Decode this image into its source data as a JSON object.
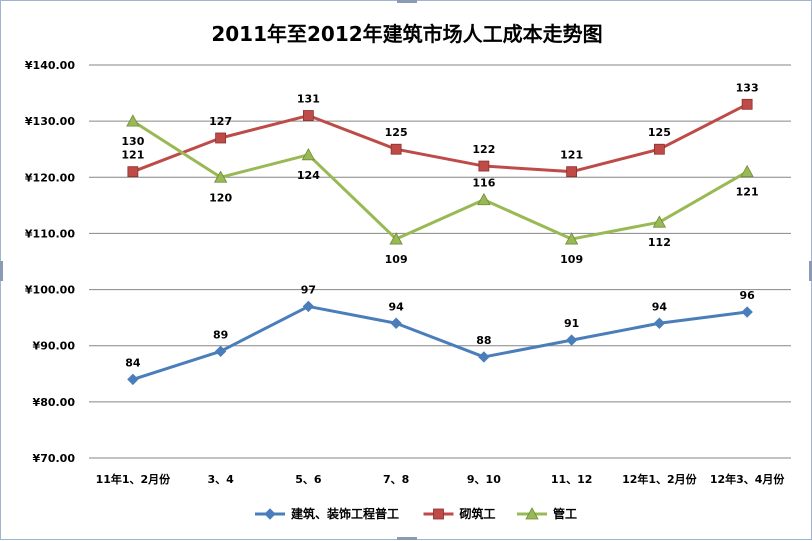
{
  "chart_data": {
    "type": "line",
    "title": "2011年至2012年建筑市场人工成本走势图",
    "categories": [
      "11年1、2月份",
      "3、4",
      "5、6",
      "7、8",
      "9、10",
      "11、12",
      "12年1、2月份",
      "12年3、4月份"
    ],
    "ylim": [
      70,
      140
    ],
    "yticks": [
      70,
      80,
      90,
      100,
      110,
      120,
      130,
      140
    ],
    "ytick_labels": [
      "¥70.00",
      "¥80.00",
      "¥90.00",
      "¥100.00",
      "¥110.00",
      "¥120.00",
      "¥130.00",
      "¥140.00"
    ],
    "grid": true,
    "legend_position": "bottom",
    "series": [
      {
        "name": "建筑、装饰工程普工",
        "values": [
          84,
          89,
          97,
          94,
          88,
          91,
          94,
          96
        ],
        "color": "#4a7ebb",
        "marker": "diamond",
        "label_pos": [
          "above",
          "above",
          "above",
          "above",
          "above",
          "above",
          "above",
          "above"
        ]
      },
      {
        "name": "砌筑工",
        "values": [
          121,
          127,
          131,
          125,
          122,
          121,
          125,
          133
        ],
        "color": "#be4b48",
        "marker": "square",
        "label_pos": [
          "above",
          "above",
          "above",
          "above",
          "above",
          "above",
          "above",
          "above"
        ]
      },
      {
        "name": "管工",
        "values": [
          130,
          120,
          124,
          109,
          116,
          109,
          112,
          121
        ],
        "color": "#98b954",
        "marker": "triangle",
        "label_pos": [
          "below",
          "below",
          "below",
          "below",
          "above",
          "below",
          "below",
          "below"
        ]
      }
    ]
  }
}
